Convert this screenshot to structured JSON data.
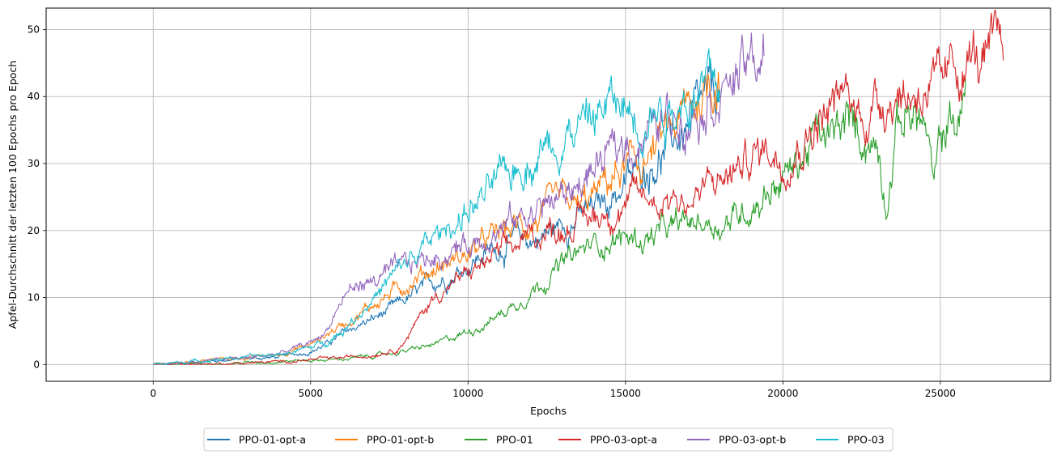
{
  "chart_data": {
    "type": "line",
    "title": "",
    "xlabel": "Epochs",
    "ylabel": "Apfel-Durchschnitt der letzten 100 Epochs pro Epoch",
    "xlim": [
      -3400,
      28500
    ],
    "ylim": [
      -2.5,
      53.2
    ],
    "xticks": [
      0,
      5000,
      10000,
      15000,
      20000,
      25000
    ],
    "yticks": [
      0,
      10,
      20,
      30,
      40,
      50
    ],
    "grid": true,
    "legend_position": "bottom-center",
    "series": [
      {
        "name": "PPO-01-opt-a",
        "color": "#1f77b4",
        "x": [
          0,
          1000,
          2000,
          3000,
          4000,
          5000,
          5500,
          6000,
          6500,
          7000,
          7500,
          8000,
          8500,
          9000,
          9500,
          10000,
          10500,
          11000,
          11500,
          12000,
          12500,
          13000,
          13500,
          14000,
          14500,
          15000,
          15500,
          16000,
          16500,
          17000,
          17500,
          18000
        ],
        "y": [
          0,
          0.2,
          0.6,
          0.9,
          1.1,
          2.0,
          3.0,
          4.5,
          5.8,
          6.8,
          8.0,
          9.5,
          11.0,
          12.5,
          13.5,
          15.0,
          16.5,
          17.5,
          18.5,
          18.5,
          19.5,
          21.0,
          22.0,
          23.0,
          25.0,
          27.0,
          29.0,
          31.0,
          33.0,
          35.5,
          38.0,
          41.0
        ]
      },
      {
        "name": "PPO-01-opt-b",
        "color": "#ff7f0e",
        "x": [
          0,
          1000,
          2000,
          3000,
          4000,
          5000,
          5500,
          6000,
          6500,
          7000,
          7500,
          8000,
          8500,
          9000,
          9500,
          10000,
          10500,
          11000,
          11500,
          12000,
          12500,
          13000,
          13500,
          14000,
          14500,
          15000,
          15500,
          16000,
          16500,
          17000,
          17500,
          18000
        ],
        "y": [
          0,
          0.3,
          0.8,
          1.0,
          1.5,
          3.0,
          4.5,
          6.0,
          7.5,
          9.0,
          10.5,
          12.0,
          13.5,
          14.5,
          15.5,
          16.5,
          18.0,
          19.5,
          20.5,
          21.0,
          22.5,
          24.0,
          23.0,
          25.0,
          27.5,
          29.0,
          30.0,
          32.0,
          35.0,
          38.0,
          41.0,
          44.0
        ]
      },
      {
        "name": "PPO-01",
        "color": "#2ca02c",
        "x": [
          0,
          2000,
          4000,
          6000,
          7000,
          8000,
          9000,
          9500,
          10000,
          10500,
          11000,
          11500,
          12000,
          12500,
          13000,
          13500,
          14000,
          14500,
          15000,
          15500,
          16000,
          16500,
          17000,
          17500,
          18000,
          18500,
          19000,
          19500,
          20000,
          20500,
          21000,
          21500,
          22000,
          22500,
          23000,
          23300,
          23600,
          24000,
          24500,
          24800,
          25000,
          25300,
          25600,
          25800
        ],
        "y": [
          0,
          0.1,
          0.5,
          0.8,
          1.3,
          2.0,
          3.0,
          4.0,
          5.0,
          6.0,
          7.5,
          9.0,
          11.0,
          13.0,
          15.0,
          16.5,
          18.0,
          18.5,
          19.0,
          18.5,
          19.5,
          20.0,
          21.0,
          21.5,
          21.0,
          22.0,
          24.0,
          26.0,
          28.0,
          30.0,
          34.0,
          33.0,
          36.0,
          34.0,
          33.0,
          25.0,
          35.0,
          38.0,
          36.0,
          26.0,
          33.0,
          37.0,
          36.0,
          40.0
        ]
      },
      {
        "name": "PPO-03-opt-a",
        "color": "#d62728",
        "x": [
          0,
          2000,
          4000,
          6000,
          7000,
          7800,
          8200,
          8600,
          9000,
          9500,
          10000,
          10500,
          11000,
          11500,
          12000,
          12500,
          13000,
          13500,
          14000,
          14500,
          15000,
          15500,
          16000,
          16500,
          17000,
          17500,
          18000,
          18500,
          19000,
          19500,
          20000,
          20500,
          21000,
          21500,
          22000,
          22500,
          23000,
          23500,
          24000,
          24500,
          25000,
          25500,
          26000,
          26500,
          27000
        ],
        "y": [
          0,
          0.1,
          0.4,
          1.0,
          1.5,
          2.5,
          5.0,
          8.0,
          10.5,
          12.0,
          13.5,
          15.0,
          16.5,
          17.5,
          19.0,
          20.0,
          20.5,
          21.5,
          22.0,
          23.0,
          24.0,
          25.0,
          24.5,
          25.5,
          24.0,
          26.0,
          27.5,
          29.0,
          31.0,
          32.5,
          31.0,
          33.0,
          36.0,
          38.0,
          40.0,
          37.0,
          39.0,
          41.0,
          40.0,
          42.0,
          40.0,
          44.0,
          46.0,
          44.0,
          48.0
        ]
      },
      {
        "name": "PPO-03-opt-b",
        "color": "#9467bd",
        "x": [
          0,
          1000,
          2000,
          3000,
          4000,
          5000,
          5500,
          5800,
          6200,
          6600,
          7000,
          7500,
          8000,
          8500,
          9000,
          9500,
          10000,
          10500,
          11000,
          11500,
          12000,
          12500,
          13000,
          13500,
          14000,
          14500,
          15000,
          15500,
          16000,
          16500,
          17000,
          17500,
          18000,
          18500,
          19000,
          19400
        ],
        "y": [
          0,
          0.3,
          0.7,
          1.0,
          1.6,
          3.2,
          5.0,
          8.0,
          11.0,
          12.0,
          12.5,
          13.5,
          14.5,
          15.5,
          16.0,
          17.0,
          18.0,
          19.5,
          20.5,
          21.5,
          23.0,
          24.0,
          25.0,
          27.0,
          29.0,
          31.0,
          33.0,
          34.0,
          35.5,
          37.0,
          38.5,
          40.0,
          41.5,
          43.0,
          44.5,
          46.0
        ]
      },
      {
        "name": "PPO-03",
        "color": "#17becf",
        "x": [
          0,
          1000,
          2000,
          3000,
          4000,
          5000,
          5500,
          6000,
          6500,
          7000,
          7500,
          8000,
          8500,
          9000,
          9500,
          10000,
          10500,
          11000,
          11500,
          12000,
          12500,
          13000,
          13500,
          14000,
          14500,
          15000,
          15500,
          16000,
          16500,
          17000,
          17500,
          18000
        ],
        "y": [
          0,
          0.4,
          0.8,
          1.1,
          1.5,
          2.5,
          3.5,
          5.0,
          7.5,
          10.0,
          12.5,
          15.0,
          17.0,
          19.0,
          21.0,
          23.0,
          25.0,
          27.0,
          29.0,
          31.0,
          33.0,
          34.5,
          35.5,
          37.0,
          39.0,
          38.0,
          37.5,
          38.5,
          39.0,
          40.0,
          41.0,
          42.0
        ]
      }
    ]
  }
}
